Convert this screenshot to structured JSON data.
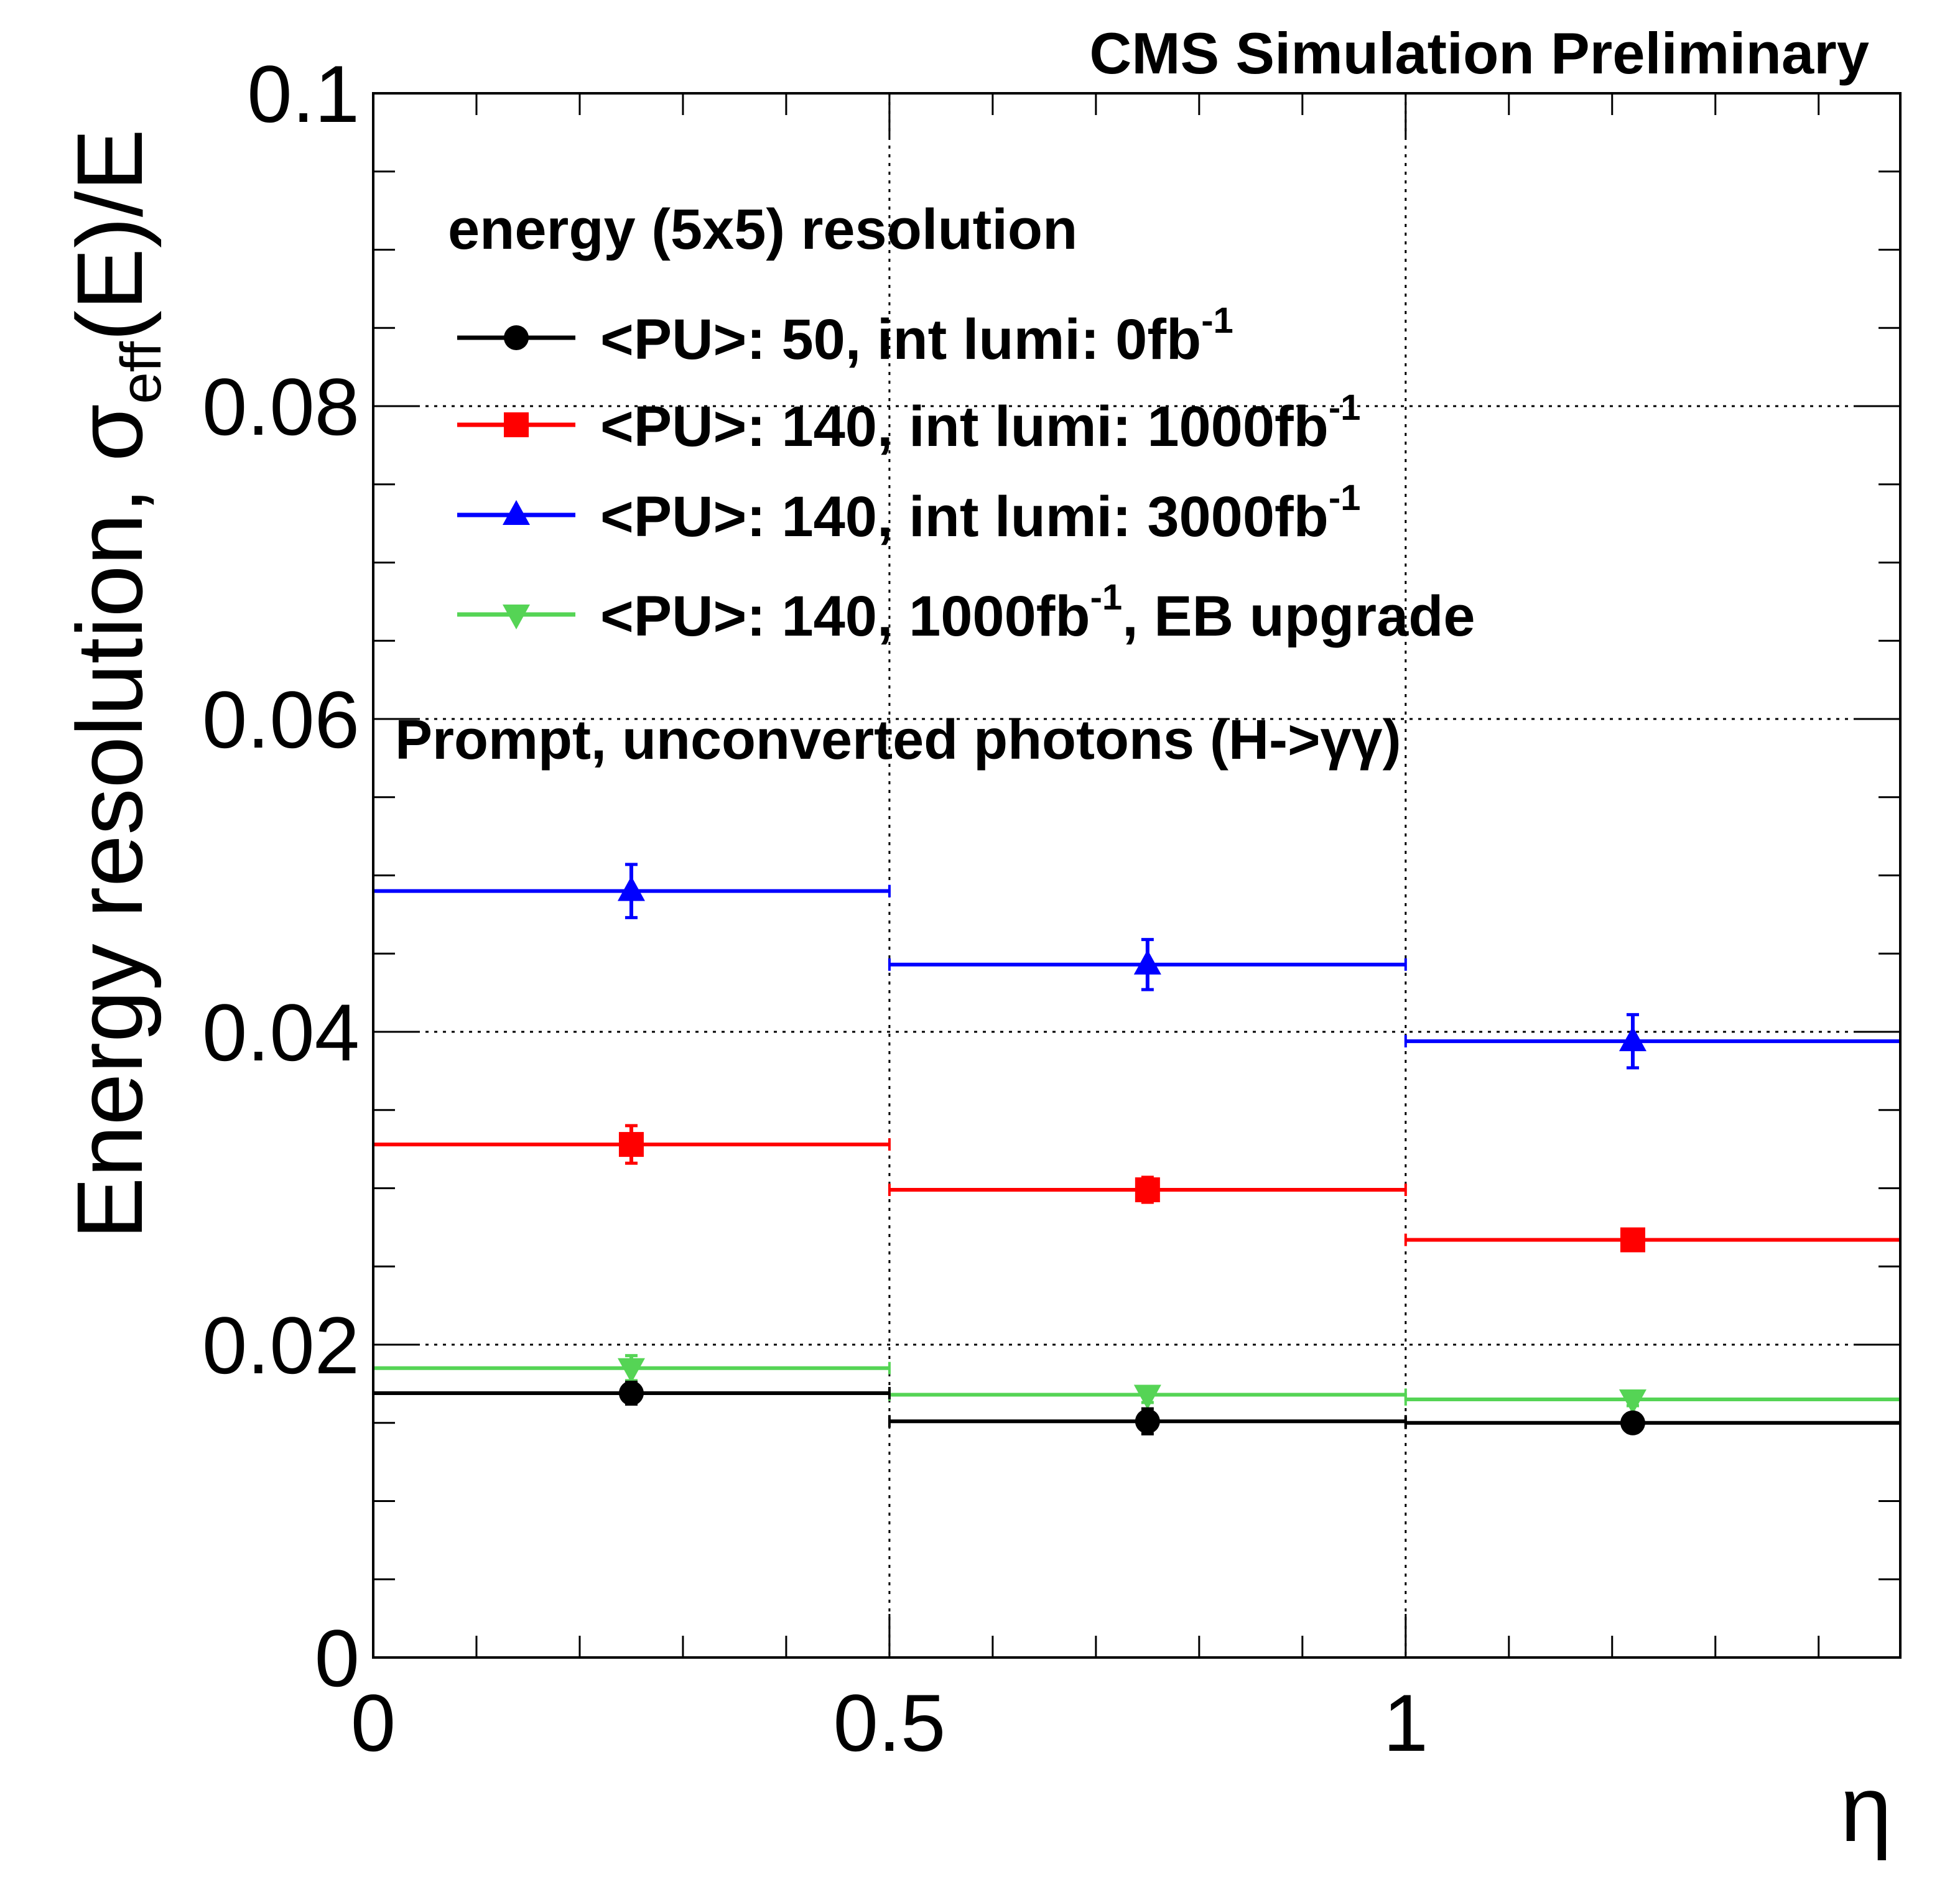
{
  "chart_data": {
    "type": "scatter",
    "title": "CMS Simulation Preliminary",
    "xlabel": "η",
    "ylabel": {
      "main": "Energy resolution, σ",
      "sub": "eff",
      "rest": "(E)/E"
    },
    "xlim": [
      0,
      1.4791
    ],
    "ylim": [
      0,
      0.1
    ],
    "x_ticks": [
      {
        "value": 0,
        "label": "0"
      },
      {
        "value": 0.5,
        "label": "0.5"
      },
      {
        "value": 1,
        "label": "1"
      }
    ],
    "y_ticks": [
      {
        "value": 0,
        "label": "0"
      },
      {
        "value": 0.02,
        "label": "0.02"
      },
      {
        "value": 0.04,
        "label": "0.04"
      },
      {
        "value": 0.06,
        "label": "0.06"
      },
      {
        "value": 0.08,
        "label": "0.08"
      },
      {
        "value": 0.1,
        "label": "0.1"
      }
    ],
    "grid": true,
    "legend_header": "energy (5x5) resolution",
    "legend_position": "top-left",
    "annotation": "Prompt, unconverted photons (H->γγ)",
    "bins": [
      [
        0,
        0.5
      ],
      [
        0.5,
        1.0
      ],
      [
        1.0,
        1.4791
      ]
    ],
    "x": [
      0.25,
      0.75,
      1.22
    ],
    "series": [
      {
        "name": "<PU>: 50, int lumi: 0fb",
        "name_sup": "-1",
        "name_tail": "",
        "color": "#000000",
        "marker": "circle",
        "values": [
          0.0169,
          0.0151,
          0.015
        ],
        "errors": [
          0.0007,
          0.0008,
          0.0006
        ]
      },
      {
        "name": "<PU>: 140, int lumi: 1000fb",
        "name_sup": "-1",
        "name_tail": "",
        "color": "#ff0000",
        "marker": "square",
        "values": [
          0.0328,
          0.0299,
          0.0267
        ],
        "errors": [
          0.0012,
          0.0008,
          0.0005
        ]
      },
      {
        "name": "<PU>: 140, int lumi: 3000fb",
        "name_sup": "-1",
        "name_tail": "",
        "color": "#0000ff",
        "marker": "triangle-up",
        "values": [
          0.049,
          0.0443,
          0.0394
        ],
        "errors": [
          0.0017,
          0.0016,
          0.0017
        ]
      },
      {
        "name": "<PU>: 140, 1000fb",
        "name_sup": "-1",
        "name_tail": ", EB upgrade",
        "color": "#55d455",
        "marker": "triangle-down",
        "values": [
          0.0185,
          0.0168,
          0.0165
        ],
        "errors": [
          0.0008,
          0.0005,
          0.0004
        ]
      }
    ]
  }
}
